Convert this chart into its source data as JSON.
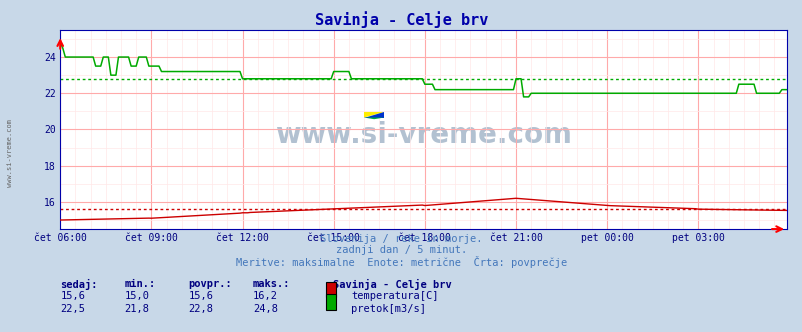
{
  "title": "Savinja - Celje brv",
  "title_color": "#0000aa",
  "bg_color": "#c8d8e8",
  "plot_bg_color": "#ffffff",
  "grid_color_major": "#ffaaaa",
  "grid_color_minor": "#ffe8e8",
  "x_labels": [
    "čet 06:00",
    "čet 09:00",
    "čet 12:00",
    "čet 15:00",
    "čet 18:00",
    "čet 21:00",
    "pet 00:00",
    "pet 03:00"
  ],
  "x_ticks_idx": [
    0,
    36,
    72,
    108,
    144,
    180,
    216,
    252
  ],
  "total_points": 288,
  "ylim": [
    14.5,
    25.5
  ],
  "yticks": [
    16,
    18,
    20,
    22,
    24
  ],
  "ylabel_color": "#000080",
  "temp_color": "#cc0000",
  "flow_color": "#00aa00",
  "temp_avg": 15.6,
  "flow_avg": 22.8,
  "subtitle1": "Slovenija / reke in morje.",
  "subtitle2": "zadnji dan / 5 minut.",
  "subtitle3": "Meritve: maksimalne  Enote: metrične  Črta: povprečje",
  "watermark": "www.si-vreme.com",
  "legend_title": "Savinja - Celje brv",
  "legend_items": [
    "temperatura[C]",
    "pretok[m3/s]"
  ],
  "table_headers": [
    "sedaj:",
    "min.:",
    "povpr.:",
    "maks.:"
  ],
  "table_data": [
    [
      "15,6",
      "15,0",
      "15,6",
      "16,2"
    ],
    [
      "22,5",
      "21,8",
      "22,8",
      "24,8"
    ]
  ],
  "left_label": "www.si-vreme.com"
}
